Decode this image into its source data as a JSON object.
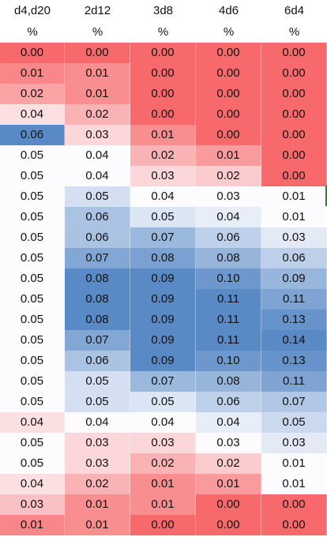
{
  "columns": [
    {
      "name": "d4,d20",
      "unit": "%"
    },
    {
      "name": "2d12",
      "unit": "%"
    },
    {
      "name": "3d8",
      "unit": "%"
    },
    {
      "name": "4d6",
      "unit": "%"
    },
    {
      "name": "6d4",
      "unit": "%"
    }
  ],
  "rows": [
    [
      "0.00",
      "0.00",
      "0.00",
      "0.00",
      "0.00"
    ],
    [
      "0.01",
      "0.01",
      "0.00",
      "0.00",
      "0.00"
    ],
    [
      "0.02",
      "0.01",
      "0.00",
      "0.00",
      "0.00"
    ],
    [
      "0.04",
      "0.02",
      "0.00",
      "0.00",
      "0.00"
    ],
    [
      "0.06",
      "0.03",
      "0.01",
      "0.00",
      "0.00"
    ],
    [
      "0.05",
      "0.04",
      "0.02",
      "0.01",
      "0.00"
    ],
    [
      "0.05",
      "0.04",
      "0.03",
      "0.02",
      "0.00"
    ],
    [
      "0.05",
      "0.05",
      "0.04",
      "0.03",
      "0.01"
    ],
    [
      "0.05",
      "0.06",
      "0.05",
      "0.04",
      "0.01"
    ],
    [
      "0.05",
      "0.06",
      "0.07",
      "0.06",
      "0.03"
    ],
    [
      "0.05",
      "0.07",
      "0.08",
      "0.08",
      "0.06"
    ],
    [
      "0.05",
      "0.08",
      "0.09",
      "0.10",
      "0.09"
    ],
    [
      "0.05",
      "0.08",
      "0.09",
      "0.11",
      "0.11"
    ],
    [
      "0.05",
      "0.08",
      "0.09",
      "0.11",
      "0.13"
    ],
    [
      "0.05",
      "0.07",
      "0.09",
      "0.11",
      "0.14"
    ],
    [
      "0.05",
      "0.06",
      "0.09",
      "0.10",
      "0.13"
    ],
    [
      "0.05",
      "0.05",
      "0.07",
      "0.08",
      "0.11"
    ],
    [
      "0.05",
      "0.05",
      "0.05",
      "0.06",
      "0.07"
    ],
    [
      "0.04",
      "0.04",
      "0.04",
      "0.04",
      "0.05"
    ],
    [
      "0.05",
      "0.03",
      "0.03",
      "0.03",
      "0.03"
    ],
    [
      "0.05",
      "0.03",
      "0.02",
      "0.02",
      "0.01"
    ],
    [
      "0.04",
      "0.02",
      "0.01",
      "0.01",
      "0.01"
    ],
    [
      "0.03",
      "0.01",
      "0.01",
      "0.00",
      "0.00"
    ],
    [
      "0.01",
      "0.01",
      "0.00",
      "0.00",
      "0.00"
    ]
  ],
  "colors": {
    "low": "#f8696b",
    "mid": "#fcfcff",
    "high": "#5a8ac6"
  }
}
